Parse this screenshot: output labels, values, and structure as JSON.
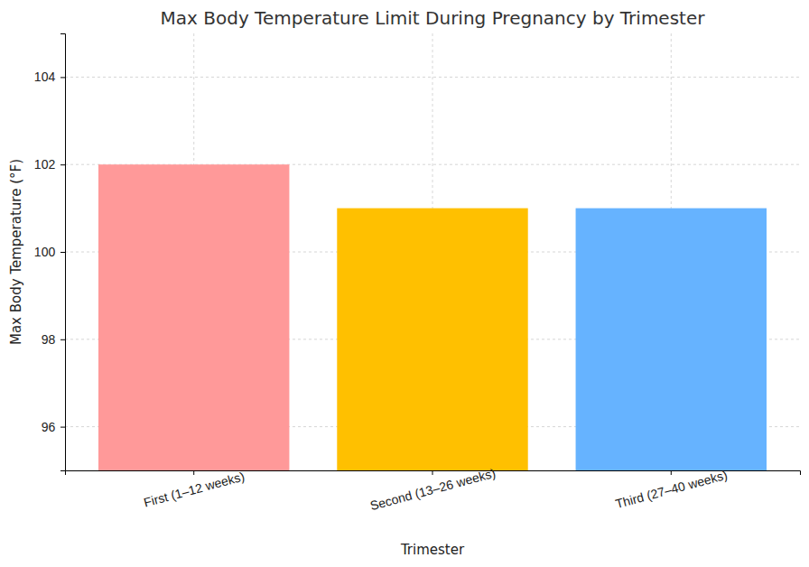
{
  "chart_data": {
    "type": "bar",
    "title": "Max Body Temperature Limit During Pregnancy by Trimester",
    "x_label": "Trimester",
    "y_label": "Max Body Temperature (°F)",
    "categories": [
      "First (1–12 weeks)",
      "Second (13–26 weeks)",
      "Third (27–40 weeks)"
    ],
    "values": [
      102,
      101,
      101
    ],
    "colors": [
      "#ff9999",
      "#ffc000",
      "#66b3ff"
    ],
    "ylim": [
      95,
      105
    ],
    "yticks": [
      96,
      98,
      100,
      102,
      104
    ],
    "grid": true
  }
}
